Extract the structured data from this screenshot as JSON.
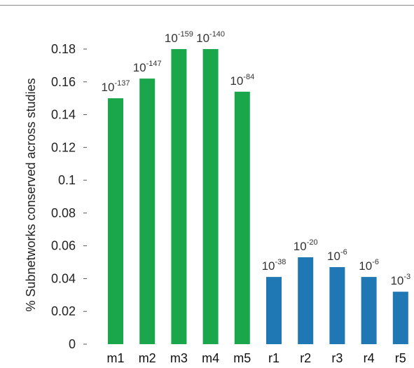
{
  "chart_data": {
    "type": "bar",
    "title": "",
    "xlabel": "",
    "ylabel": "% Subnetworks conserved across studies",
    "ylim": [
      0,
      0.18
    ],
    "yticks": [
      "0",
      "0.02",
      "0.04",
      "0.06",
      "0.08",
      "0.1",
      "0.12",
      "0.14",
      "0.16",
      "0.18"
    ],
    "categories": [
      "m1",
      "m2",
      "m3",
      "m4",
      "m5",
      "r1",
      "r2",
      "r3",
      "r4",
      "r5"
    ],
    "values": [
      0.15,
      0.162,
      0.18,
      0.18,
      0.154,
      0.041,
      0.053,
      0.047,
      0.041,
      0.032
    ],
    "annotations": [
      {
        "base": "10",
        "exp": "-137"
      },
      {
        "base": "10",
        "exp": "-147"
      },
      {
        "base": "10",
        "exp": "-159"
      },
      {
        "base": "10",
        "exp": "-140"
      },
      {
        "base": "10",
        "exp": "-84"
      },
      {
        "base": "10",
        "exp": "-38"
      },
      {
        "base": "10",
        "exp": "-20"
      },
      {
        "base": "10",
        "exp": "-6"
      },
      {
        "base": "10",
        "exp": "-6"
      },
      {
        "base": "10",
        "exp": "-3"
      }
    ],
    "colors": [
      "#1aa64a",
      "#1aa64a",
      "#1aa64a",
      "#1aa64a",
      "#1aa64a",
      "#1f77b4",
      "#1f77b4",
      "#1f77b4",
      "#1f77b4",
      "#1f77b4"
    ],
    "grid": false,
    "legend": "none"
  }
}
